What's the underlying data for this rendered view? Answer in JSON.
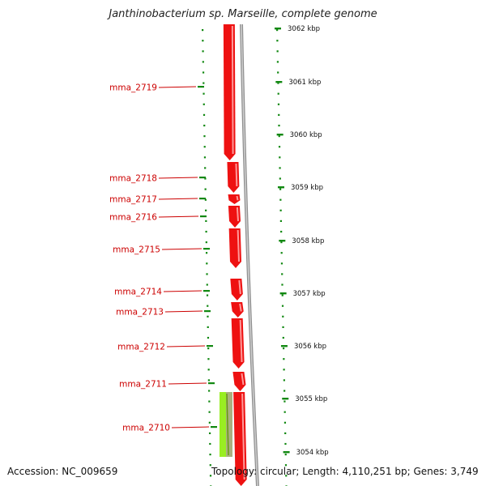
{
  "title": "Janthinobacterium sp. Marseille, complete genome",
  "footer": {
    "accession_label": "Accession: NC_009659",
    "topology_label": "Topology: circular; Length: 4,110,251 bp; Genes: 3,749"
  },
  "colors": {
    "gene_forward": "#ee1111",
    "gene_highlight": "#99ee22",
    "gene_highlight_edge": "#669911",
    "backbone": "#909090",
    "tick": "#118811",
    "label": "#cc0000"
  },
  "genes": [
    {
      "name": "mma_2719"
    },
    {
      "name": "mma_2718"
    },
    {
      "name": "mma_2717"
    },
    {
      "name": "mma_2716"
    },
    {
      "name": "mma_2715"
    },
    {
      "name": "mma_2714"
    },
    {
      "name": "mma_2713"
    },
    {
      "name": "mma_2712"
    },
    {
      "name": "mma_2711"
    },
    {
      "name": "mma_2710"
    }
  ],
  "kbp_ticks": [
    {
      "label": "3062 kbp"
    },
    {
      "label": "3061 kbp"
    },
    {
      "label": "3060 kbp"
    },
    {
      "label": "3059 kbp"
    },
    {
      "label": "3058 kbp"
    },
    {
      "label": "3057 kbp"
    },
    {
      "label": "3056 kbp"
    },
    {
      "label": "3055 kbp"
    },
    {
      "label": "3054 kbp"
    }
  ]
}
